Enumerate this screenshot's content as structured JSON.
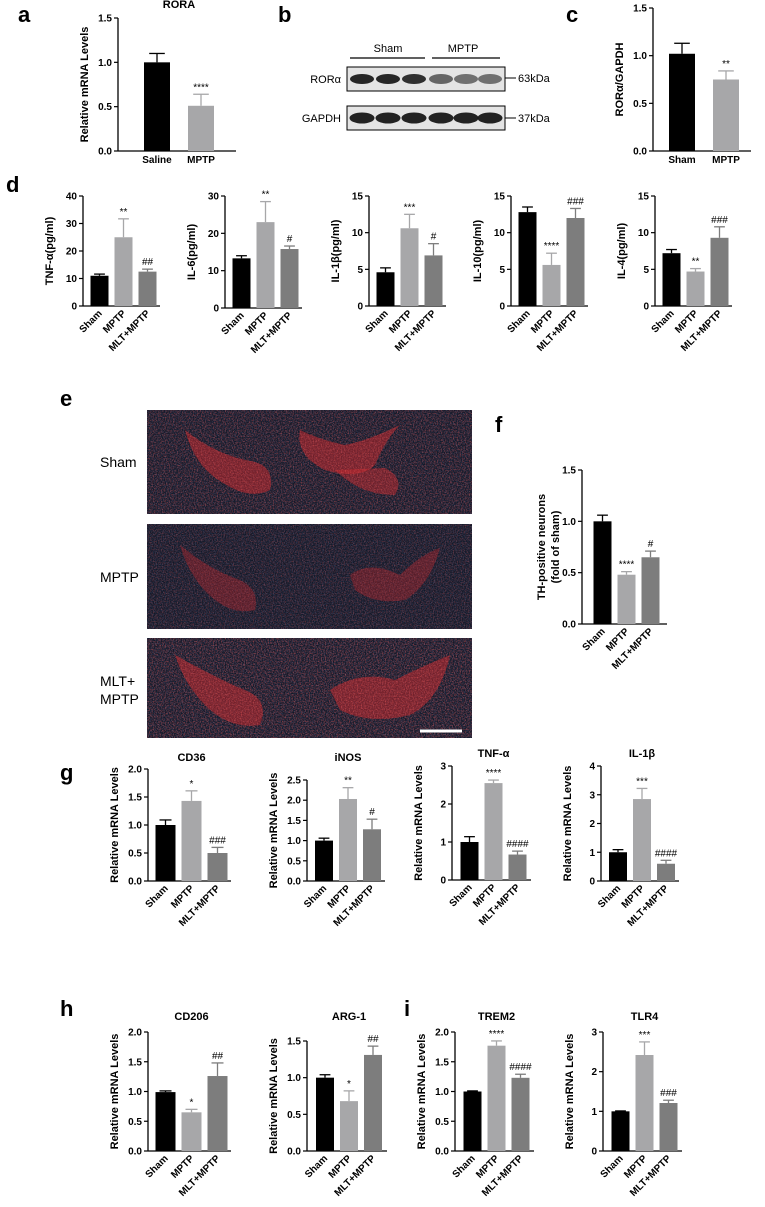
{
  "colors": {
    "black": "#000000",
    "light_gray": "#a7a7a9",
    "dark_gray": "#7d7d7d",
    "image_bg": "#111827",
    "signal_red": "#d62728",
    "counter_blue": "#3b5c9e"
  },
  "panel_labels": {
    "a": "a",
    "b": "b",
    "c": "c",
    "d": "d",
    "e": "e",
    "f": "f",
    "g": "g",
    "h": "h",
    "i": "i"
  },
  "western_blot": {
    "group_labels": [
      "Sham",
      "MPTP"
    ],
    "row_labels": [
      "RORα",
      "GAPDH"
    ],
    "size_markers": [
      "63kDa",
      "37kDa"
    ]
  },
  "image_panel": {
    "row_labels": [
      "Sham",
      "MPTP",
      "MLT+\nMPTP"
    ],
    "scale_bar": true
  },
  "chart_data": [
    {
      "id": "a",
      "type": "bar",
      "title": "RORA",
      "ylabel": "Relative mRNA Levels",
      "ylim": [
        0,
        1.5
      ],
      "yticks": [
        "0.0",
        "0.5",
        "1.0",
        "1.5"
      ],
      "categories": [
        "Saline",
        "MPTP"
      ],
      "values": [
        1.0,
        0.51
      ],
      "errors": [
        0.1,
        0.13
      ],
      "significance": [
        "",
        "****"
      ],
      "bar_colors": [
        "black",
        "light_gray"
      ],
      "cat_rot": 0
    },
    {
      "id": "c",
      "type": "bar",
      "title": "",
      "ylabel": "RORα/GAPDH",
      "ylim": [
        0,
        1.5
      ],
      "yticks": [
        "0.0",
        "0.5",
        "1.0",
        "1.5"
      ],
      "categories": [
        "Sham",
        "MPTP"
      ],
      "values": [
        1.02,
        0.75
      ],
      "errors": [
        0.11,
        0.09
      ],
      "significance": [
        "",
        "**"
      ],
      "bar_colors": [
        "black",
        "light_gray"
      ],
      "cat_rot": 0
    },
    {
      "id": "d1",
      "type": "bar",
      "title": "",
      "ylabel": "TNF-α(pg/ml)",
      "ylim": [
        0,
        40
      ],
      "yticks": [
        "0",
        "10",
        "20",
        "30",
        "40"
      ],
      "categories": [
        "Sham",
        "MPTP",
        "MLT+MPTP"
      ],
      "values": [
        11,
        25,
        12.5
      ],
      "errors": [
        0.6,
        6.7,
        0.9
      ],
      "significance": [
        "",
        "**",
        "##"
      ],
      "bar_colors": [
        "black",
        "light_gray",
        "dark_gray"
      ],
      "cat_rot": -45
    },
    {
      "id": "d2",
      "type": "bar",
      "title": "",
      "ylabel": "IL-6(pg/ml)",
      "ylim": [
        0,
        30
      ],
      "yticks": [
        "0",
        "10",
        "20",
        "30"
      ],
      "categories": [
        "Sham",
        "MPTP",
        "MLT+MPTP"
      ],
      "values": [
        13.3,
        23,
        15.8
      ],
      "errors": [
        0.7,
        5.5,
        0.8
      ],
      "significance": [
        "",
        "**",
        "#"
      ],
      "bar_colors": [
        "black",
        "light_gray",
        "dark_gray"
      ],
      "cat_rot": -45
    },
    {
      "id": "d3",
      "type": "bar",
      "title": "",
      "ylabel": "IL-1β(pg/ml)",
      "ylim": [
        0,
        15
      ],
      "yticks": [
        "0",
        "5",
        "10",
        "15"
      ],
      "categories": [
        "Sham",
        "MPTP",
        "MLT+MPTP"
      ],
      "values": [
        4.6,
        10.6,
        6.9
      ],
      "errors": [
        0.6,
        1.9,
        1.6
      ],
      "significance": [
        "",
        "***",
        "#"
      ],
      "bar_colors": [
        "black",
        "light_gray",
        "dark_gray"
      ],
      "cat_rot": -45
    },
    {
      "id": "d4",
      "type": "bar",
      "title": "",
      "ylabel": "IL-10(pg/ml)",
      "ylim": [
        0,
        15
      ],
      "yticks": [
        "0",
        "5",
        "10",
        "15"
      ],
      "categories": [
        "Sham",
        "MPTP",
        "MLT+MPTP"
      ],
      "values": [
        12.8,
        5.6,
        12.0
      ],
      "errors": [
        0.7,
        1.6,
        1.3
      ],
      "significance": [
        "",
        "****",
        "###"
      ],
      "bar_colors": [
        "black",
        "light_gray",
        "dark_gray"
      ],
      "cat_rot": -45
    },
    {
      "id": "d5",
      "type": "bar",
      "title": "",
      "ylabel": "IL-4(pg/ml)",
      "ylim": [
        0,
        15
      ],
      "yticks": [
        "0",
        "5",
        "10",
        "15"
      ],
      "categories": [
        "Sham",
        "MPTP",
        "MLT+MPTP"
      ],
      "values": [
        7.2,
        4.7,
        9.3
      ],
      "errors": [
        0.5,
        0.4,
        1.5
      ],
      "significance": [
        "",
        "**",
        "###"
      ],
      "bar_colors": [
        "black",
        "light_gray",
        "dark_gray"
      ],
      "cat_rot": -45
    },
    {
      "id": "f",
      "type": "bar",
      "title": "",
      "ylabel": "TH-positive neurons\n(fold of sham)",
      "ylim": [
        0,
        1.5
      ],
      "yticks": [
        "0.0",
        "0.5",
        "1.0",
        "1.5"
      ],
      "categories": [
        "Sham",
        "MPTP",
        "MLT+MPTP"
      ],
      "values": [
        1.0,
        0.48,
        0.65
      ],
      "errors": [
        0.06,
        0.03,
        0.06
      ],
      "significance": [
        "",
        "****",
        "#"
      ],
      "bar_colors": [
        "black",
        "light_gray",
        "dark_gray"
      ],
      "cat_rot": -45
    },
    {
      "id": "g1",
      "type": "bar",
      "title": "CD36",
      "ylabel": "Relative mRNA Levels",
      "ylim": [
        0,
        2.0
      ],
      "yticks": [
        "0.0",
        "0.5",
        "1.0",
        "1.5",
        "2.0"
      ],
      "categories": [
        "Sham",
        "MPTP",
        "MLT+MPTP"
      ],
      "values": [
        1.0,
        1.43,
        0.5
      ],
      "errors": [
        0.09,
        0.18,
        0.1
      ],
      "significance": [
        "",
        "*",
        "###"
      ],
      "bar_colors": [
        "black",
        "light_gray",
        "dark_gray"
      ],
      "cat_rot": -45
    },
    {
      "id": "g2",
      "type": "bar",
      "title": "iNOS",
      "ylabel": "Relative mRNA Levels",
      "ylim": [
        0,
        2.5
      ],
      "yticks": [
        "0.0",
        "0.5",
        "1.0",
        "1.5",
        "2.0",
        "2.5"
      ],
      "categories": [
        "Sham",
        "MPTP",
        "MLT+MPTP"
      ],
      "values": [
        1.0,
        2.03,
        1.28
      ],
      "errors": [
        0.06,
        0.28,
        0.25
      ],
      "significance": [
        "",
        "**",
        "#"
      ],
      "bar_colors": [
        "black",
        "light_gray",
        "dark_gray"
      ],
      "cat_rot": -45
    },
    {
      "id": "g3",
      "type": "bar",
      "title": "TNF-α",
      "ylabel": "Relative mRNA Levels",
      "ylim": [
        0,
        3
      ],
      "yticks": [
        "0",
        "1",
        "2",
        "3"
      ],
      "categories": [
        "Sham",
        "MPTP",
        "MLT+MPTP"
      ],
      "values": [
        1.0,
        2.55,
        0.67
      ],
      "errors": [
        0.14,
        0.08,
        0.09
      ],
      "significance": [
        "",
        "****",
        "####"
      ],
      "bar_colors": [
        "black",
        "light_gray",
        "dark_gray"
      ],
      "cat_rot": -45
    },
    {
      "id": "g4",
      "type": "bar",
      "title": "IL-1β",
      "ylabel": "Relative mRNA Levels",
      "ylim": [
        0,
        4
      ],
      "yticks": [
        "0",
        "1",
        "2",
        "3",
        "4"
      ],
      "categories": [
        "Sham",
        "MPTP",
        "MLT+MPTP"
      ],
      "values": [
        1.0,
        2.85,
        0.6
      ],
      "errors": [
        0.09,
        0.37,
        0.12
      ],
      "significance": [
        "",
        "***",
        "####"
      ],
      "bar_colors": [
        "black",
        "light_gray",
        "dark_gray"
      ],
      "cat_rot": -45
    },
    {
      "id": "h1",
      "type": "bar",
      "title": "CD206",
      "ylabel": "Relative mRNA Levels",
      "ylim": [
        0,
        2.0
      ],
      "yticks": [
        "0.0",
        "0.5",
        "1.0",
        "1.5",
        "2.0"
      ],
      "categories": [
        "Sham",
        "MPTP",
        "MLT+MPTP"
      ],
      "values": [
        0.99,
        0.65,
        1.26
      ],
      "errors": [
        0.02,
        0.05,
        0.22
      ],
      "significance": [
        "",
        "*",
        "##"
      ],
      "bar_colors": [
        "black",
        "light_gray",
        "dark_gray"
      ],
      "cat_rot": -45
    },
    {
      "id": "h2",
      "type": "bar",
      "title": "ARG-1",
      "ylabel": "Relative mRNA Levels",
      "ylim": [
        0,
        1.5
      ],
      "yticks": [
        "0.0",
        "0.5",
        "1.0",
        "1.5"
      ],
      "categories": [
        "Sham",
        "MPTP",
        "MLT+MPTP"
      ],
      "values": [
        1.0,
        0.68,
        1.31
      ],
      "errors": [
        0.04,
        0.14,
        0.12
      ],
      "significance": [
        "",
        "*",
        "##"
      ],
      "bar_colors": [
        "black",
        "light_gray",
        "dark_gray"
      ],
      "cat_rot": -45
    },
    {
      "id": "i1",
      "type": "bar",
      "title": "TREM2",
      "ylabel": "Relative mRNA Levels",
      "ylim": [
        0,
        2.0
      ],
      "yticks": [
        "0.0",
        "0.5",
        "1.0",
        "1.5",
        "2.0"
      ],
      "categories": [
        "Sham",
        "MPTP",
        "MLT+MPTP"
      ],
      "values": [
        1.0,
        1.77,
        1.23
      ],
      "errors": [
        0.01,
        0.08,
        0.06
      ],
      "significance": [
        "",
        "****",
        "####"
      ],
      "bar_colors": [
        "black",
        "light_gray",
        "dark_gray"
      ],
      "cat_rot": -45
    },
    {
      "id": "i2",
      "type": "bar",
      "title": "TLR4",
      "ylabel": "Relative mRNA Levels",
      "ylim": [
        0,
        3
      ],
      "yticks": [
        "0",
        "1",
        "2",
        "3"
      ],
      "categories": [
        "Sham",
        "MPTP",
        "MLT+MPTP"
      ],
      "values": [
        1.0,
        2.42,
        1.21
      ],
      "errors": [
        0.01,
        0.33,
        0.07
      ],
      "significance": [
        "",
        "***",
        "###"
      ],
      "bar_colors": [
        "black",
        "light_gray",
        "dark_gray"
      ],
      "cat_rot": -45
    }
  ]
}
